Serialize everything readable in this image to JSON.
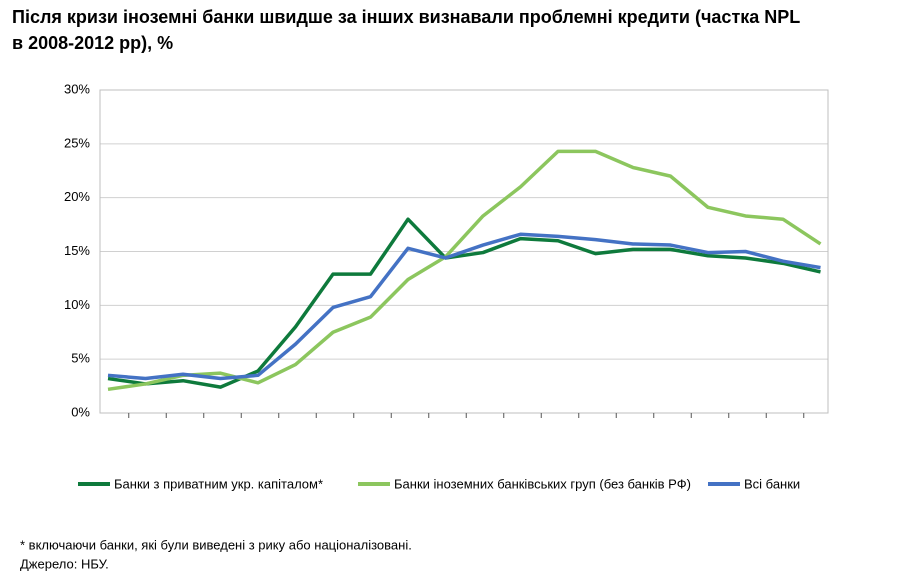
{
  "chart_data": {
    "type": "line",
    "title": "Після кризи іноземні банки швидше за інших визнавали проблемні кредити (частка NPL в 2008-2012 рр), %",
    "categories": [
      null,
      null,
      null,
      null,
      null,
      null,
      null,
      null,
      null,
      null,
      null,
      null,
      null,
      null,
      null,
      null,
      null,
      null,
      null,
      null
    ],
    "series": [
      {
        "name": "Банки з приватним укр. капіталом*",
        "color": "#0e7a3c",
        "values": [
          3.2,
          2.7,
          3.0,
          2.4,
          3.9,
          8.0,
          12.9,
          12.9,
          18.0,
          14.4,
          14.9,
          16.2,
          16.0,
          14.8,
          15.2,
          15.2,
          14.6,
          14.4,
          13.9,
          13.1
        ]
      },
      {
        "name": "Банки іноземних банківських груп (без банків РФ)",
        "color": "#8cc65e",
        "values": [
          2.2,
          2.7,
          3.5,
          3.7,
          2.8,
          4.5,
          7.5,
          8.9,
          12.4,
          14.5,
          18.3,
          21.0,
          24.3,
          24.3,
          22.8,
          22.0,
          19.1,
          18.3,
          18.0,
          15.7
        ]
      },
      {
        "name": "Всі банки",
        "color": "#4472c4",
        "values": [
          3.5,
          3.2,
          3.6,
          3.2,
          3.5,
          6.4,
          9.8,
          10.8,
          15.3,
          14.4,
          15.6,
          16.6,
          16.4,
          16.1,
          15.7,
          15.6,
          14.9,
          15.0,
          14.1,
          13.5
        ]
      }
    ],
    "ylim": [
      0,
      30
    ],
    "yticks": [
      {
        "value": 0,
        "label": "0%"
      },
      {
        "value": 5,
        "label": "5%"
      },
      {
        "value": 10,
        "label": "10%"
      },
      {
        "value": 15,
        "label": "15%"
      },
      {
        "value": 20,
        "label": "20%"
      },
      {
        "value": 25,
        "label": "25%"
      },
      {
        "value": 30,
        "label": "30%"
      }
    ],
    "grid": true,
    "legend": "bottom",
    "footnote": "* включаючи банки, які були виведені з рику або націоналізовані.",
    "source": "Джерело: НБУ."
  }
}
